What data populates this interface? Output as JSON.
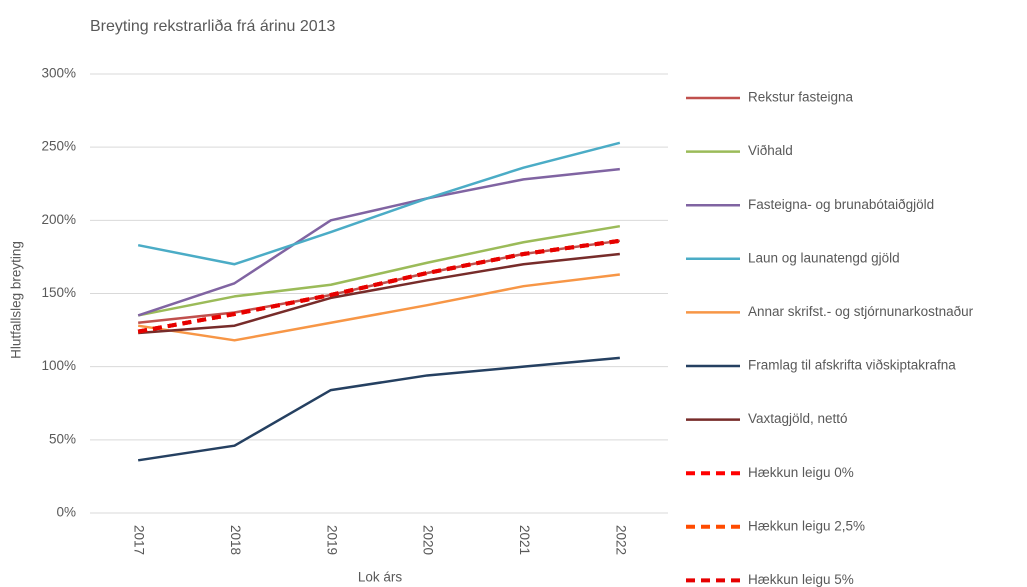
{
  "chart_data": {
    "type": "line",
    "title": "Breyting rekstrarliða frá árinu 2013",
    "x_label": "Lok árs",
    "y_label": "Hlutfallsleg breyting",
    "categories": [
      "2017",
      "2018",
      "2019",
      "2020",
      "2021",
      "2022"
    ],
    "ylim": [
      0,
      300
    ],
    "yticks": [
      {
        "value": 0,
        "label": "0%"
      },
      {
        "value": 50,
        "label": "50%"
      },
      {
        "value": 100,
        "label": "100%"
      },
      {
        "value": 150,
        "label": "150%"
      },
      {
        "value": 200,
        "label": "200%"
      },
      {
        "value": 250,
        "label": "250%"
      },
      {
        "value": 300,
        "label": "300%"
      }
    ],
    "grid": true,
    "legend": "right",
    "series": [
      {
        "name": "Rekstur fasteigna",
        "color": "#c0504d",
        "dashed": false,
        "values": [
          130,
          137,
          149,
          164,
          177,
          186
        ]
      },
      {
        "name": "Viðhald",
        "color": "#9bbb59",
        "dashed": false,
        "values": [
          135,
          148,
          156,
          171,
          185,
          196
        ]
      },
      {
        "name": "Fasteigna- og brunabótaiðgjöld",
        "color": "#8064a2",
        "dashed": false,
        "values": [
          135,
          157,
          200,
          215,
          228,
          235
        ]
      },
      {
        "name": "Laun og launatengd gjöld",
        "color": "#4bacc6",
        "dashed": false,
        "values": [
          183,
          170,
          192,
          215,
          236,
          253
        ]
      },
      {
        "name": "Annar skrifst.- og stjórnunarkostnaður",
        "color": "#f79646",
        "dashed": false,
        "values": [
          128,
          118,
          130,
          142,
          155,
          163
        ]
      },
      {
        "name": "Framlag til afskrifta viðskiptakrafna",
        "color": "#254061",
        "dashed": false,
        "values": [
          36,
          46,
          84,
          94,
          100,
          106
        ]
      },
      {
        "name": "Vaxtagjöld, nettó",
        "color": "#772c2a",
        "dashed": false,
        "values": [
          123,
          128,
          147,
          159,
          170,
          177
        ]
      },
      {
        "name": "Hækkun leigu 0%",
        "color": "#ff0000",
        "dashed": true,
        "values": [
          124,
          136,
          149,
          164,
          177,
          186
        ]
      },
      {
        "name": "Hækkun leigu 2,5%",
        "color": "#ff4b00",
        "dashed": true,
        "values": [
          124,
          136,
          149,
          164,
          177,
          186
        ]
      },
      {
        "name": "Hækkun leigu 5%",
        "color": "#e60000",
        "dashed": true,
        "values": [
          124,
          136,
          149,
          164,
          177,
          186
        ]
      }
    ]
  }
}
